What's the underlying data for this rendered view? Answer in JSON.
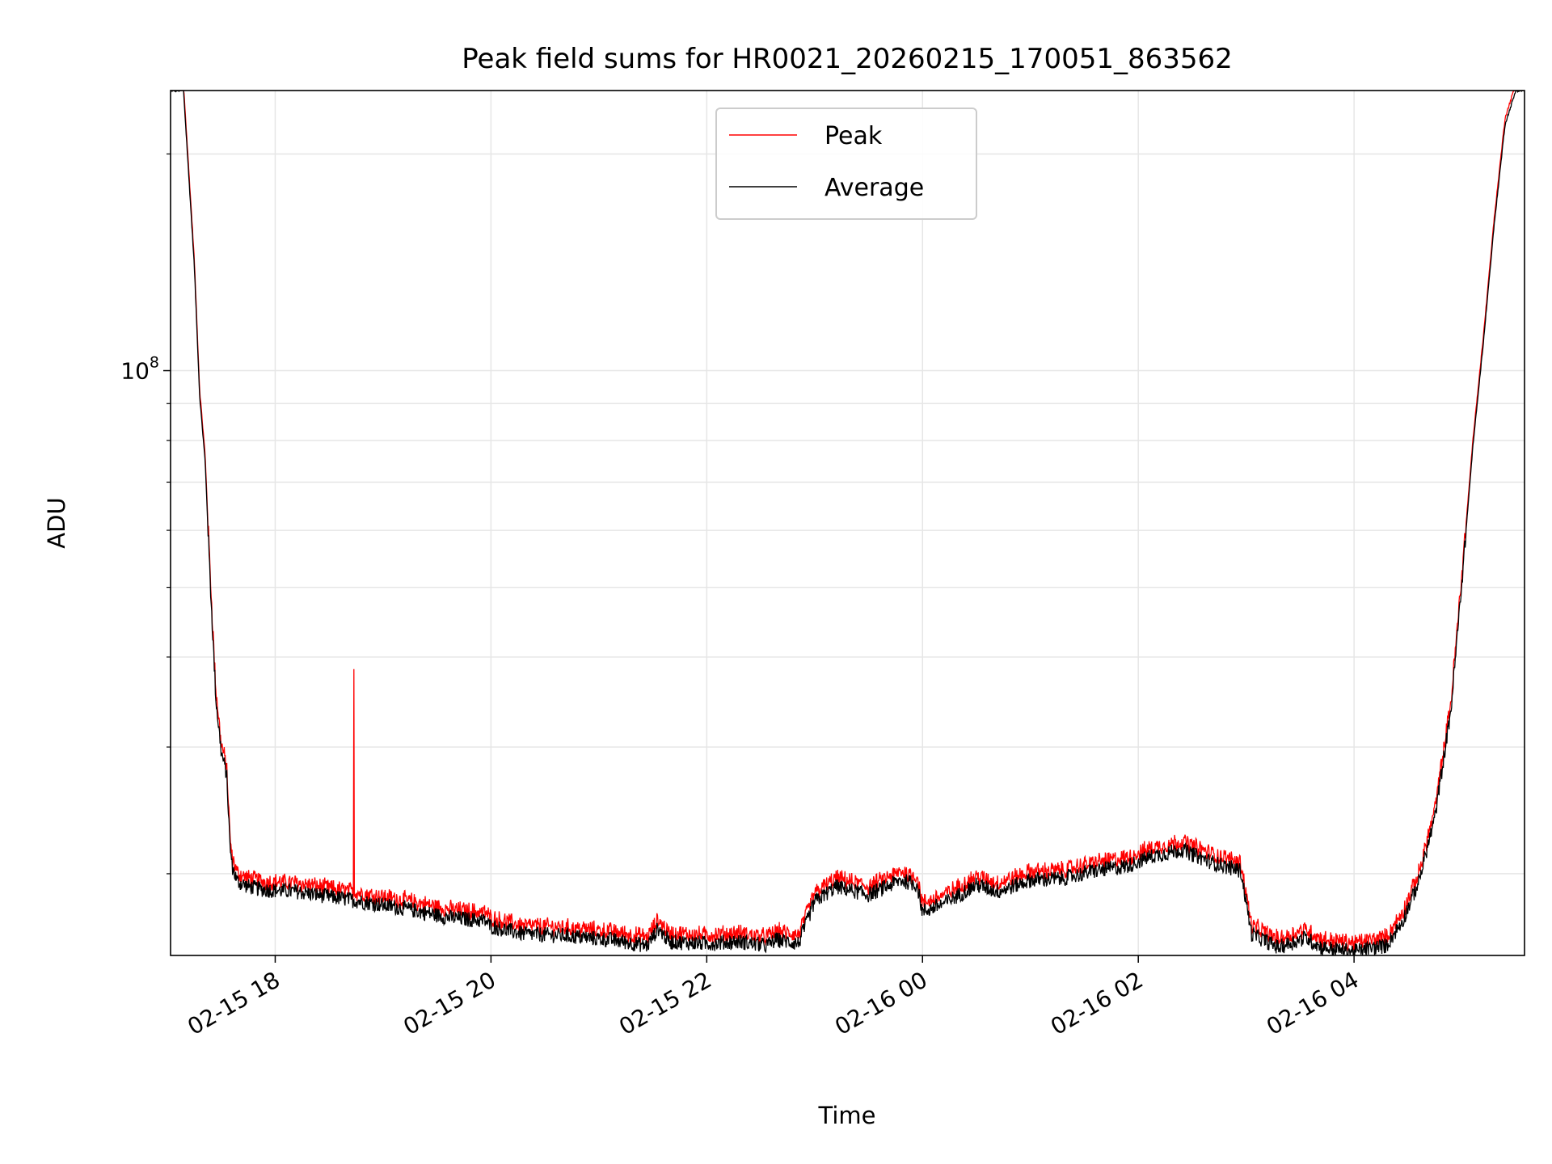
{
  "chart_data": {
    "type": "line",
    "title": "Peak field sums for HR0021_20260215_170051_863562",
    "xlabel": "Time",
    "ylabel": "ADU",
    "yscale": "log",
    "ylim": [
      15400000,
      245000000
    ],
    "xlim_hours": [
      17.03,
      29.58
    ],
    "x_unit": "hours since 2026-02-15 00:00",
    "x_ticks": [
      {
        "value": 18,
        "label": "02-15 18"
      },
      {
        "value": 20,
        "label": "02-15 20"
      },
      {
        "value": 22,
        "label": "02-15 22"
      },
      {
        "value": 24,
        "label": "02-16 00"
      },
      {
        "value": 26,
        "label": "02-16 02"
      },
      {
        "value": 28,
        "label": "02-16 04"
      }
    ],
    "y_major_ticks": [
      {
        "value": 100000000,
        "base": "10",
        "exp": "8"
      }
    ],
    "y_minor_ticks": [
      20000000,
      30000000,
      40000000,
      50000000,
      60000000,
      70000000,
      80000000,
      90000000,
      200000000
    ],
    "grid": true,
    "legend_position": "upper-center",
    "legend": [
      {
        "label": "Peak",
        "color": "#ff0000"
      },
      {
        "label": "Average",
        "color": "#000000"
      }
    ],
    "series": [
      {
        "name": "Average",
        "color": "#000000",
        "x": [
          17.03,
          17.15,
          17.25,
          17.3,
          17.35,
          17.4,
          17.45,
          17.5,
          17.55,
          17.58,
          17.6,
          17.65,
          17.75,
          17.9,
          18.2,
          18.5,
          18.8,
          19.2,
          19.6,
          19.95,
          20.0,
          20.3,
          20.7,
          21.1,
          21.45,
          21.55,
          21.65,
          22.0,
          22.3,
          22.55,
          22.65,
          22.85,
          23.0,
          23.2,
          23.5,
          23.8,
          23.95,
          24.0,
          24.2,
          24.5,
          24.7,
          25.0,
          25.3,
          25.6,
          25.9,
          26.1,
          26.4,
          26.7,
          26.95,
          27.05,
          27.3,
          27.55,
          27.7,
          28.0,
          28.3,
          28.45,
          28.6,
          28.75,
          28.9,
          29.0,
          29.1,
          29.2,
          29.3,
          29.4,
          29.5,
          29.58
        ],
        "y": [
          245000000,
          245000000,
          140000000,
          92000000,
          75000000,
          50000000,
          35000000,
          29500000,
          27500000,
          22000000,
          20500000,
          19500000,
          19200000,
          19000000,
          18900000,
          18600000,
          18300000,
          17900000,
          17400000,
          17200000,
          16900000,
          16500000,
          16400000,
          16200000,
          15900000,
          16800000,
          16100000,
          16000000,
          16100000,
          15900000,
          16200000,
          16000000,
          18300000,
          19200000,
          18700000,
          19600000,
          19300000,
          17700000,
          18200000,
          19300000,
          18900000,
          19600000,
          19700000,
          20200000,
          20500000,
          21100000,
          21600000,
          20700000,
          20200000,
          16500000,
          15800000,
          16300000,
          15800000,
          15600000,
          15900000,
          17200000,
          19500000,
          24000000,
          34000000,
          51000000,
          78000000,
          110000000,
          160000000,
          220000000,
          245000000,
          245000000
        ]
      },
      {
        "name": "Peak",
        "color": "#ff0000",
        "ratio_to_average": 1.02,
        "spike": {
          "x": 18.73,
          "y": 38500000
        }
      }
    ]
  }
}
